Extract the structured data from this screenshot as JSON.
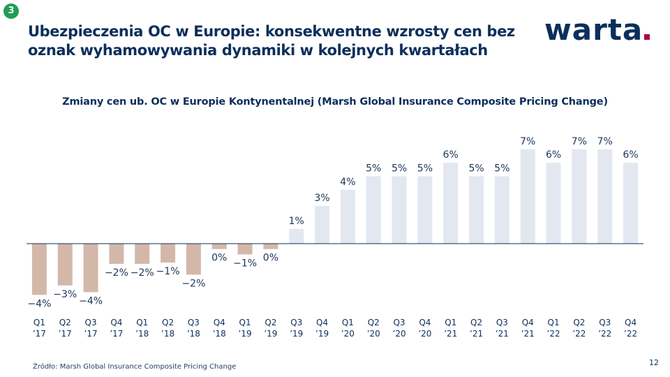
{
  "slide_badge": "3",
  "title": "Ubezpieczenia OC w Europie: konsekwentne wzrosty cen bez oznak wyhamowywania dynamiki w kolejnych kwartałach",
  "logo_text": "warta",
  "source": "Źródło: Marsh Global Insurance Composite Pricing Change",
  "page_number": "12",
  "colors": {
    "negative_bar": "#d3b8aa",
    "positive_bar": "#e2e7f0",
    "text": "#0b2f5b",
    "logo_dot": "#b0003a",
    "badge": "#1f9d55"
  },
  "chart_data": {
    "type": "bar",
    "title": "Zmiany cen ub. OC w Europie Kontynentalnej  (Marsh Global Insurance Composite Pricing Change)",
    "xlabel": "",
    "ylabel": "",
    "categories": [
      [
        "Q1",
        "’17"
      ],
      [
        "Q2",
        "’17"
      ],
      [
        "Q3",
        "’17"
      ],
      [
        "Q4",
        "’17"
      ],
      [
        "Q1",
        "’18"
      ],
      [
        "Q2",
        "’18"
      ],
      [
        "Q3",
        "’18"
      ],
      [
        "Q4",
        "’18"
      ],
      [
        "Q1",
        "’19"
      ],
      [
        "Q2",
        "’19"
      ],
      [
        "Q3",
        "’19"
      ],
      [
        "Q4",
        "’19"
      ],
      [
        "Q1",
        "’20"
      ],
      [
        "Q2",
        "’20"
      ],
      [
        "Q3",
        "’20"
      ],
      [
        "Q4",
        "’20"
      ],
      [
        "Q1",
        "’21"
      ],
      [
        "Q2",
        "’21"
      ],
      [
        "Q3",
        "’21"
      ],
      [
        "Q4",
        "’21"
      ],
      [
        "Q1",
        "’22"
      ],
      [
        "Q2",
        "’22"
      ],
      [
        "Q3",
        "’22"
      ],
      [
        "Q4",
        "’22"
      ]
    ],
    "values": [
      -4,
      -3,
      -4,
      -2,
      -2,
      -1,
      -2,
      0,
      -1,
      0,
      1,
      3,
      4,
      5,
      5,
      5,
      6,
      5,
      5,
      7,
      6,
      7,
      7,
      6
    ],
    "bar_values": [
      -3.8,
      -3.1,
      -3.6,
      -1.5,
      -1.5,
      -1.4,
      -2.3,
      -0.4,
      -0.8,
      -0.4,
      1.1,
      2.8,
      4.0,
      5.0,
      5.0,
      5.0,
      6.0,
      5.0,
      5.0,
      7.0,
      6.0,
      7.0,
      7.0,
      6.0
    ],
    "labels": [
      "−4%",
      "−3%",
      "−4%",
      "−2%",
      "−2%",
      "−1%",
      "−2%",
      "0%",
      "−1%",
      "0%",
      "1%",
      "3%",
      "4%",
      "5%",
      "5%",
      "5%",
      "6%",
      "5%",
      "5%",
      "7%",
      "6%",
      "7%",
      "7%",
      "6%"
    ],
    "ylim": [
      -4.5,
      8
    ],
    "grid": false,
    "legend": "none"
  }
}
